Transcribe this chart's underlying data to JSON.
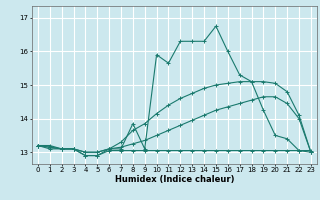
{
  "title": "",
  "xlabel": "Humidex (Indice chaleur)",
  "xlim": [
    -0.5,
    23.5
  ],
  "ylim": [
    12.65,
    17.35
  ],
  "yticks": [
    13,
    14,
    15,
    16,
    17
  ],
  "xticks": [
    0,
    1,
    2,
    3,
    4,
    5,
    6,
    7,
    8,
    9,
    10,
    11,
    12,
    13,
    14,
    15,
    16,
    17,
    18,
    19,
    20,
    21,
    22,
    23
  ],
  "bg_color": "#cce8ee",
  "grid_color": "#ffffff",
  "line_color": "#1a7a6e",
  "lines": [
    {
      "x": [
        0,
        1,
        2,
        3,
        4,
        5,
        6,
        7,
        8,
        9,
        10,
        11,
        12,
        13,
        14,
        15,
        16,
        17,
        18,
        19,
        20,
        21,
        22,
        23
      ],
      "y": [
        13.2,
        13.2,
        13.1,
        13.1,
        12.9,
        12.9,
        13.1,
        13.1,
        13.85,
        13.1,
        15.9,
        15.65,
        16.3,
        16.3,
        16.3,
        16.75,
        16.0,
        15.3,
        15.1,
        14.25,
        13.5,
        13.4,
        13.05,
        13.05
      ]
    },
    {
      "x": [
        0,
        1,
        2,
        3,
        4,
        5,
        6,
        7,
        8,
        9,
        10,
        11,
        12,
        13,
        14,
        15,
        16,
        17,
        18,
        19,
        20,
        21,
        22,
        23
      ],
      "y": [
        13.2,
        13.15,
        13.1,
        13.1,
        12.9,
        12.9,
        13.05,
        13.05,
        13.05,
        13.05,
        13.05,
        13.05,
        13.05,
        13.05,
        13.05,
        13.05,
        13.05,
        13.05,
        13.05,
        13.05,
        13.05,
        13.05,
        13.05,
        13.0
      ]
    },
    {
      "x": [
        0,
        1,
        2,
        3,
        4,
        5,
        6,
        7,
        8,
        9,
        10,
        11,
        12,
        13,
        14,
        15,
        16,
        17,
        18,
        19,
        20,
        21,
        22,
        23
      ],
      "y": [
        13.2,
        13.15,
        13.1,
        13.1,
        13.0,
        13.0,
        13.1,
        13.3,
        13.65,
        13.85,
        14.15,
        14.4,
        14.6,
        14.75,
        14.9,
        15.0,
        15.05,
        15.1,
        15.1,
        15.1,
        15.05,
        14.8,
        14.1,
        13.0
      ]
    },
    {
      "x": [
        0,
        1,
        2,
        3,
        4,
        5,
        6,
        7,
        8,
        9,
        10,
        11,
        12,
        13,
        14,
        15,
        16,
        17,
        18,
        19,
        20,
        21,
        22,
        23
      ],
      "y": [
        13.2,
        13.1,
        13.1,
        13.1,
        13.0,
        13.0,
        13.1,
        13.15,
        13.25,
        13.35,
        13.5,
        13.65,
        13.8,
        13.95,
        14.1,
        14.25,
        14.35,
        14.45,
        14.55,
        14.65,
        14.65,
        14.45,
        14.0,
        13.0
      ]
    }
  ]
}
